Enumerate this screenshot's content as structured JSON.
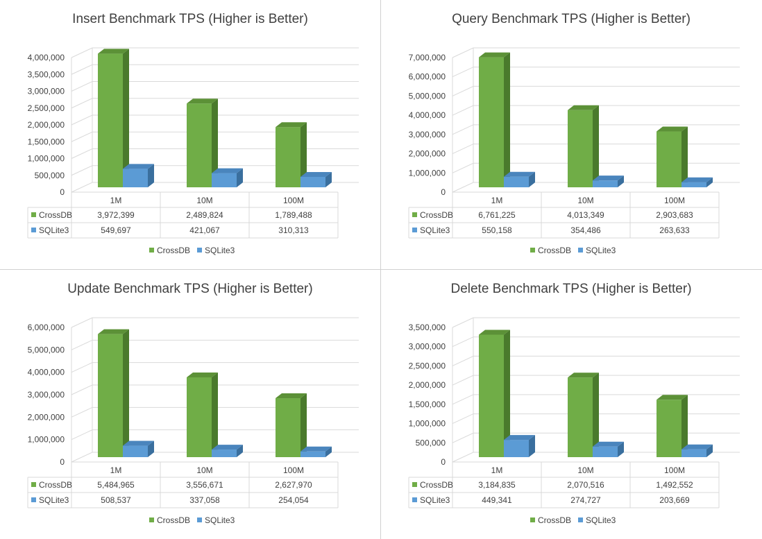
{
  "colors": {
    "crossdb": "#70ad47",
    "crossdb_side": "#4a7a2c",
    "crossdb_top": "#5c9137",
    "sqlite": "#5b9bd5",
    "sqlite_side": "#3a6f9e",
    "sqlite_top": "#4a85bd",
    "grid": "#d9d9d9",
    "text": "#404040"
  },
  "chart_data": [
    {
      "type": "bar",
      "title": "Insert Benchmark TPS (Higher is Better)",
      "categories": [
        "1M",
        "10M",
        "100M"
      ],
      "series": [
        {
          "name": "CrossDB",
          "values": [
            3972399,
            2489824,
            1789488
          ],
          "labels": [
            "3,972,399",
            "2,489,824",
            "1,789,488"
          ]
        },
        {
          "name": "SQLite3",
          "values": [
            549697,
            421067,
            310313
          ],
          "labels": [
            "549,697",
            "421,067",
            "310,313"
          ]
        }
      ],
      "ylim": [
        0,
        4000000
      ],
      "yticks": [
        0,
        500000,
        1000000,
        1500000,
        2000000,
        2500000,
        3000000,
        3500000,
        4000000
      ],
      "ytick_labels": [
        "0",
        "500,000",
        "1,000,000",
        "1,500,000",
        "2,000,000",
        "2,500,000",
        "3,000,000",
        "3,500,000",
        "4,000,000"
      ],
      "legend": "bottom",
      "grid": true
    },
    {
      "type": "bar",
      "title": "Query Benchmark TPS (Higher is Better)",
      "categories": [
        "1M",
        "10M",
        "100M"
      ],
      "series": [
        {
          "name": "CrossDB",
          "values": [
            6761225,
            4013349,
            2903683
          ],
          "labels": [
            "6,761,225",
            "4,013,349",
            "2,903,683"
          ]
        },
        {
          "name": "SQLite3",
          "values": [
            550158,
            354486,
            263633
          ],
          "labels": [
            "550,158",
            "354,486",
            "263,633"
          ]
        }
      ],
      "ylim": [
        0,
        7000000
      ],
      "yticks": [
        0,
        1000000,
        2000000,
        3000000,
        4000000,
        5000000,
        6000000,
        7000000
      ],
      "ytick_labels": [
        "0",
        "1,000,000",
        "2,000,000",
        "3,000,000",
        "4,000,000",
        "5,000,000",
        "6,000,000",
        "7,000,000"
      ],
      "legend": "bottom",
      "grid": true
    },
    {
      "type": "bar",
      "title": "Update Benchmark TPS (Higher is Better)",
      "categories": [
        "1M",
        "10M",
        "100M"
      ],
      "series": [
        {
          "name": "CrossDB",
          "values": [
            5484965,
            3556671,
            2627970
          ],
          "labels": [
            "5,484,965",
            "3,556,671",
            "2,627,970"
          ]
        },
        {
          "name": "SQLite3",
          "values": [
            508537,
            337058,
            254054
          ],
          "labels": [
            "508,537",
            "337,058",
            "254,054"
          ]
        }
      ],
      "ylim": [
        0,
        6000000
      ],
      "yticks": [
        0,
        1000000,
        2000000,
        3000000,
        4000000,
        5000000,
        6000000
      ],
      "ytick_labels": [
        "0",
        "1,000,000",
        "2,000,000",
        "3,000,000",
        "4,000,000",
        "5,000,000",
        "6,000,000"
      ],
      "legend": "bottom",
      "grid": true
    },
    {
      "type": "bar",
      "title": "Delete Benchmark TPS (Higher is Better)",
      "categories": [
        "1M",
        "10M",
        "100M"
      ],
      "series": [
        {
          "name": "CrossDB",
          "values": [
            3184835,
            2070516,
            1492552
          ],
          "labels": [
            "3,184,835",
            "2,070,516",
            "1,492,552"
          ]
        },
        {
          "name": "SQLite3",
          "values": [
            449341,
            274727,
            203669
          ],
          "labels": [
            "449,341",
            "274,727",
            "203,669"
          ]
        }
      ],
      "ylim": [
        0,
        3500000
      ],
      "yticks": [
        0,
        500000,
        1000000,
        1500000,
        2000000,
        2500000,
        3000000,
        3500000
      ],
      "ytick_labels": [
        "0",
        "500,000",
        "1,000,000",
        "1,500,000",
        "2,000,000",
        "2,500,000",
        "3,000,000",
        "3,500,000"
      ],
      "legend": "bottom",
      "grid": true
    }
  ]
}
